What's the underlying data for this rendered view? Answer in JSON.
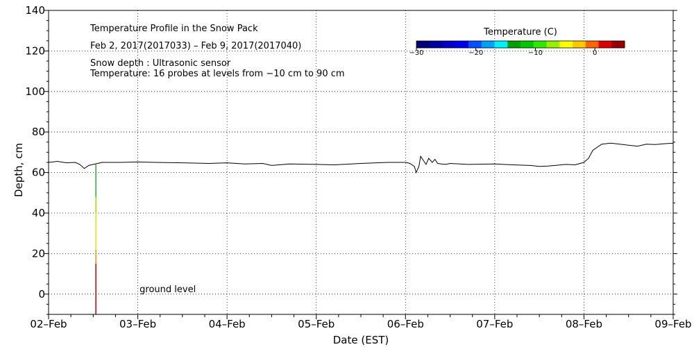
{
  "chart_data": {
    "type": "line",
    "title": "Temperature Profile in the Snow Pack",
    "subtitle": "Feb  2, 2017(2017033) – Feb  9, 2017(2017040)",
    "notes": [
      "Snow depth : Ultrasonic sensor",
      "Temperature: 16 probes at levels from −10 cm to 90 cm"
    ],
    "xlabel": "Date (EST)",
    "ylabel": "Depth, cm",
    "xlim": [
      0,
      7
    ],
    "ylim": [
      -10,
      140
    ],
    "x_ticks": [
      {
        "value": 0,
        "label": "02–Feb"
      },
      {
        "value": 1,
        "label": "03–Feb"
      },
      {
        "value": 2,
        "label": "04–Feb"
      },
      {
        "value": 3,
        "label": "05–Feb"
      },
      {
        "value": 4,
        "label": "06–Feb"
      },
      {
        "value": 5,
        "label": "07–Feb"
      },
      {
        "value": 6,
        "label": "08–Feb"
      },
      {
        "value": 7,
        "label": "09–Feb"
      }
    ],
    "y_ticks": [
      {
        "value": 0,
        "label": "0"
      },
      {
        "value": 20,
        "label": "20"
      },
      {
        "value": 40,
        "label": "40"
      },
      {
        "value": 60,
        "label": "60"
      },
      {
        "value": 80,
        "label": "80"
      },
      {
        "value": 100,
        "label": "100"
      },
      {
        "value": 120,
        "label": "120"
      },
      {
        "value": 140,
        "label": "140"
      }
    ],
    "grid": true,
    "annotation": {
      "text": "ground level",
      "x": 1.02,
      "y": 0
    },
    "series": [
      {
        "color": "#000000",
        "x": [
          0,
          0.1,
          0.2,
          0.3,
          0.35,
          0.4,
          0.45,
          0.5,
          0.55,
          0.6,
          0.8,
          1.0,
          1.2,
          1.5,
          1.8,
          2.0,
          2.2,
          2.4,
          2.5,
          2.7,
          3.0,
          3.2,
          3.5,
          3.8,
          4.0,
          4.05,
          4.1,
          4.12,
          4.15,
          4.17,
          4.2,
          4.23,
          4.26,
          4.3,
          4.33,
          4.36,
          4.4,
          4.45,
          4.5,
          4.7,
          5.0,
          5.2,
          5.4,
          5.5,
          5.6,
          5.8,
          5.9,
          6.0,
          6.05,
          6.1,
          6.2,
          6.3,
          6.4,
          6.5,
          6.6,
          6.7,
          6.8,
          6.9,
          7.0
        ],
        "values": [
          65,
          65.5,
          64.8,
          65,
          64,
          62,
          63.5,
          64,
          64.5,
          65,
          65,
          65.2,
          65,
          64.8,
          64.5,
          64.8,
          64.2,
          64.5,
          63.5,
          64.2,
          64,
          63.8,
          64.5,
          65,
          65,
          64.5,
          63,
          60,
          63,
          68,
          66,
          64,
          67,
          65,
          66.5,
          64.5,
          64.2,
          64,
          64.5,
          64,
          64.2,
          63.8,
          63.5,
          63,
          63.2,
          64,
          63.8,
          65,
          67,
          71,
          74,
          74.5,
          74,
          73.5,
          73,
          74,
          73.8,
          74.2,
          74.5
        ]
      }
    ],
    "colorbar": {
      "title": "Temperature (C)",
      "range": [
        -30,
        5
      ],
      "tick_labels": [
        {
          "value": -30,
          "label": "−30"
        },
        {
          "value": -20,
          "label": "−20"
        },
        {
          "value": -10,
          "label": "−10"
        },
        {
          "value": 0,
          "label": "0"
        }
      ],
      "colors": [
        "#000078",
        "#0000a0",
        "#0000c8",
        "#0000f0",
        "#0050ff",
        "#00a0ff",
        "#00f0ff",
        "#00a000",
        "#00c800",
        "#32e600",
        "#96f000",
        "#ffff00",
        "#ffc800",
        "#ff6400",
        "#dc0000",
        "#960000"
      ]
    },
    "probe_column": {
      "x": 0.53,
      "segments": [
        {
          "from": -10,
          "to": 15,
          "color": "#c80000"
        },
        {
          "from": 15,
          "to": 22,
          "color": "#ff8c00"
        },
        {
          "from": 22,
          "to": 40,
          "color": "#e6e600"
        },
        {
          "from": 40,
          "to": 48,
          "color": "#96e600"
        },
        {
          "from": 48,
          "to": 64,
          "color": "#28b428"
        }
      ]
    }
  }
}
